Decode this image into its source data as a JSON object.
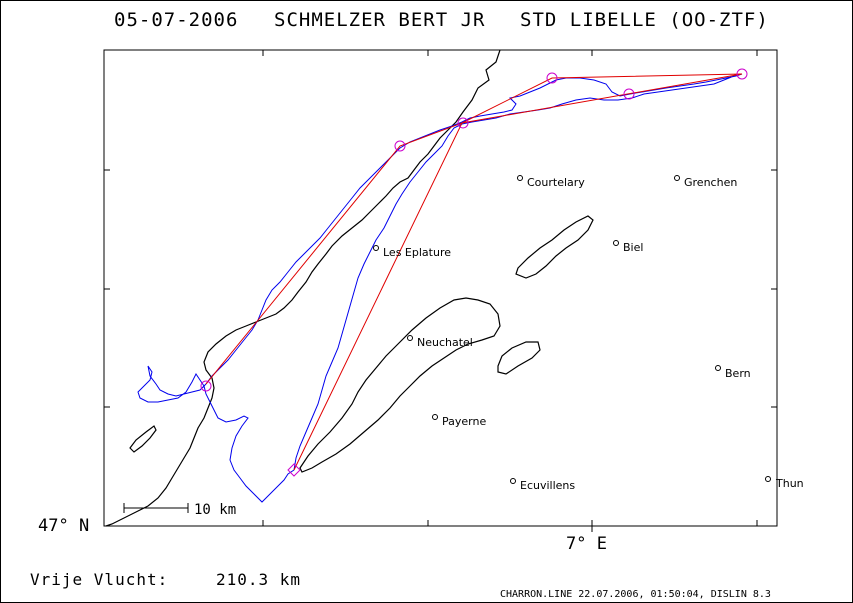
{
  "title": {
    "date": "05-07-2006",
    "pilot": "SCHMELZER BERT JR",
    "glider": "STD LIBELLE (OO-ZTF)"
  },
  "axes": {
    "lat_label": "47° N",
    "lon_label": "7° E"
  },
  "scale_label": "10 km",
  "distance": {
    "label": "Vrije Vlucht:",
    "value": "210.3 km"
  },
  "footer": "CHARRON.LINE 22.07.2006, 01:50:04, DISLIN 8.3",
  "places": [
    {
      "name": "Courtelary"
    },
    {
      "name": "Grenchen"
    },
    {
      "name": "Les Eplature"
    },
    {
      "name": "Biel"
    },
    {
      "name": "Neuchatel"
    },
    {
      "name": "Bern"
    },
    {
      "name": "Payerne"
    },
    {
      "name": "Ecuvillens"
    },
    {
      "name": "Thun"
    }
  ],
  "colors": {
    "track": "#0000ee",
    "task": "#e00000",
    "turnpoint": "#cc00cc",
    "border": "#000000"
  }
}
